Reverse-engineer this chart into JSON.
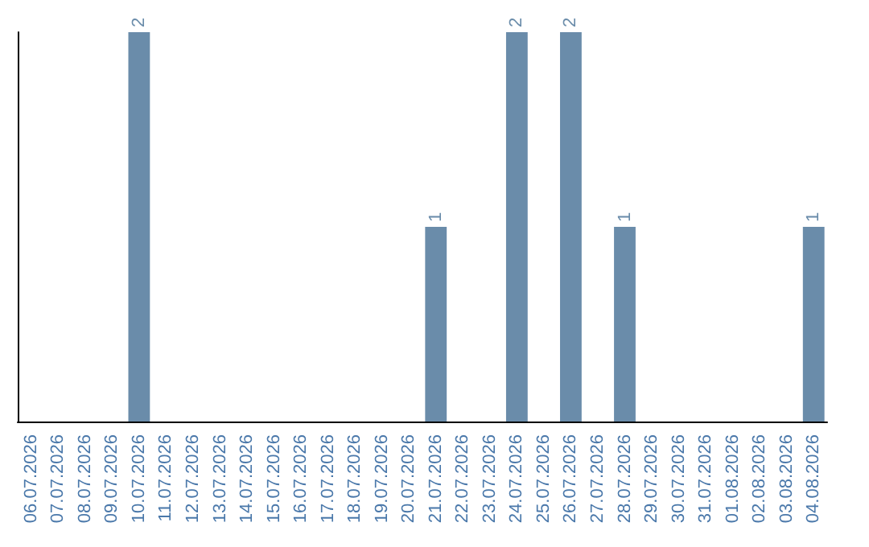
{
  "chart_data": {
    "type": "bar",
    "categories": [
      "06.07.2026",
      "07.07.2026",
      "08.07.2026",
      "09.07.2026",
      "10.07.2026",
      "11.07.2026",
      "12.07.2026",
      "13.07.2026",
      "14.07.2026",
      "15.07.2026",
      "16.07.2026",
      "17.07.2026",
      "18.07.2026",
      "19.07.2026",
      "20.07.2026",
      "21.07.2026",
      "22.07.2026",
      "23.07.2026",
      "24.07.2026",
      "25.07.2026",
      "26.07.2026",
      "27.07.2026",
      "28.07.2026",
      "29.07.2026",
      "30.07.2026",
      "31.07.2026",
      "01.08.2026",
      "02.08.2026",
      "03.08.2026",
      "04.08.2026"
    ],
    "values": [
      0,
      0,
      0,
      0,
      2,
      0,
      0,
      0,
      0,
      0,
      0,
      0,
      0,
      0,
      0,
      1,
      0,
      0,
      2,
      0,
      2,
      0,
      1,
      0,
      0,
      0,
      0,
      0,
      0,
      1
    ],
    "value_labels": [
      null,
      null,
      null,
      null,
      "2",
      null,
      null,
      null,
      null,
      null,
      null,
      null,
      null,
      null,
      null,
      "1",
      null,
      null,
      "2",
      null,
      "2",
      null,
      "1",
      null,
      null,
      null,
      null,
      null,
      null,
      "1"
    ],
    "color": "#6a8caa",
    "grid": false
  }
}
